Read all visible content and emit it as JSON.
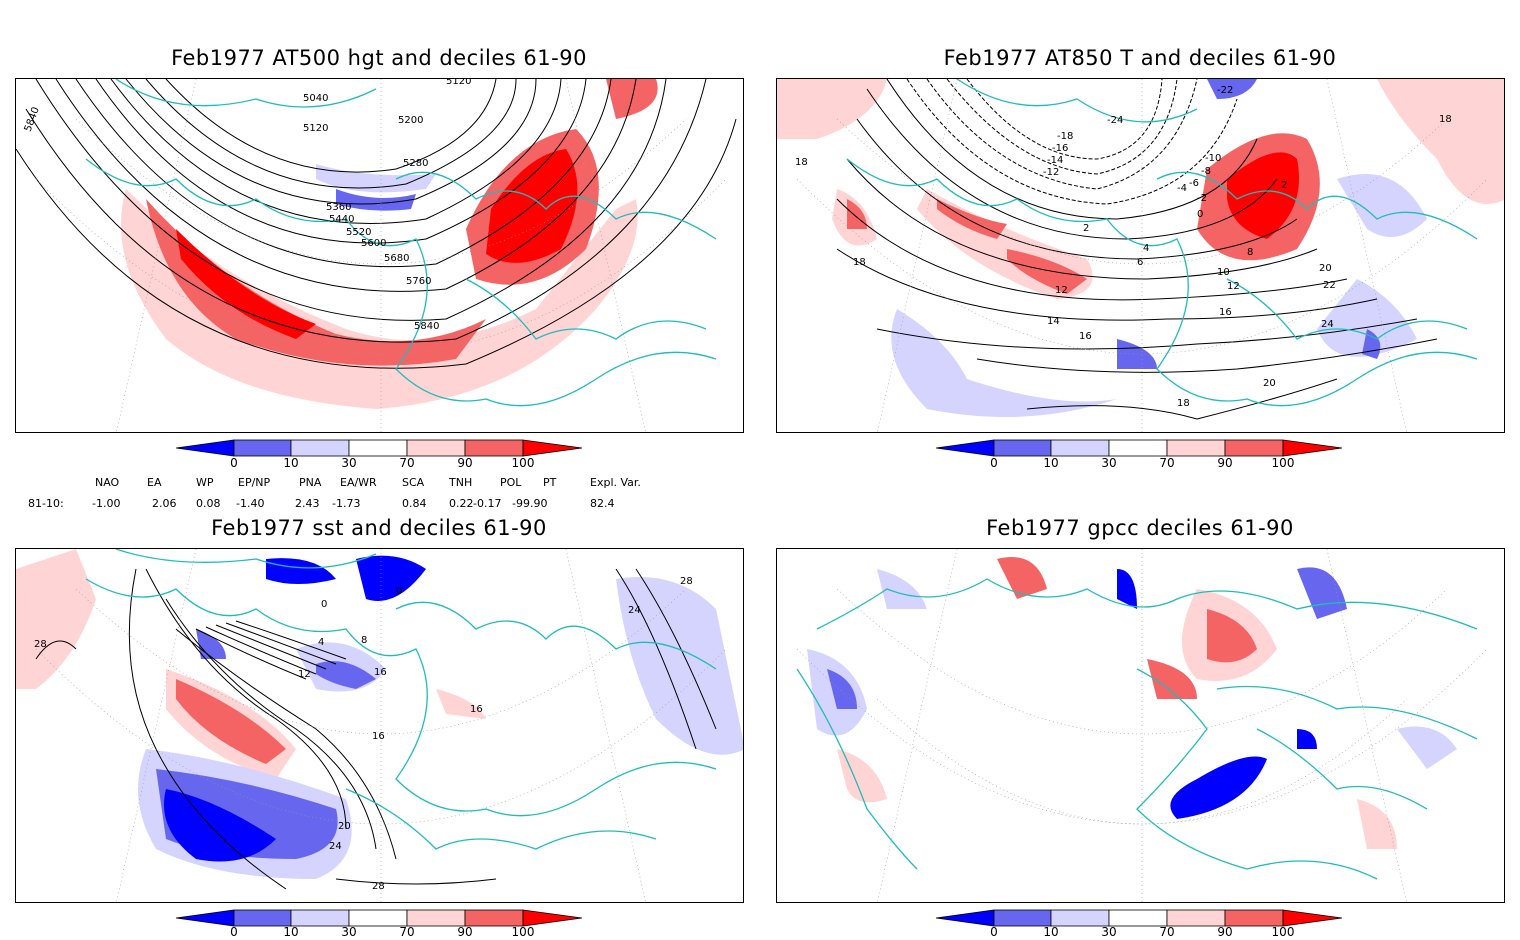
{
  "panels": [
    {
      "id": "p1",
      "title": "Feb1977 AT500 hgt and deciles 61-90",
      "contour_labels": [
        "5040",
        "5120",
        "5200",
        "5280",
        "5360",
        "5440",
        "5520",
        "5600",
        "5680",
        "5760",
        "5840",
        "5840",
        "5120"
      ]
    },
    {
      "id": "p2",
      "title": "Feb1977 AT850 T and deciles 61-90",
      "contour_labels": [
        "-24",
        "-22",
        "-18",
        "-16",
        "-14",
        "-12",
        "-10",
        "-8",
        "-6",
        "-4",
        "-2",
        "0",
        "2",
        "4",
        "6",
        "8",
        "10",
        "12",
        "12",
        "14",
        "16",
        "16",
        "18",
        "18",
        "18",
        "20",
        "20",
        "22",
        "24",
        "2",
        "18"
      ]
    },
    {
      "id": "p3",
      "title": "Feb1977 sst and deciles 61-90",
      "contour_labels": [
        "28",
        "28",
        "0",
        "0",
        "4",
        "8",
        "12",
        "16",
        "16",
        "20",
        "24",
        "24",
        "28",
        "16"
      ]
    },
    {
      "id": "p4",
      "title": "Feb1977 gpcc deciles 61-90",
      "contour_labels": []
    }
  ],
  "colorbar": {
    "labels": [
      "0",
      "10",
      "30",
      "70",
      "90",
      "100"
    ],
    "colors": {
      "strong_blue": "#0000ff",
      "mid_blue": "#6666ee",
      "light_blue": "#d4d4ff",
      "white": "#ffffff",
      "light_red": "#ffd4d4",
      "mid_red": "#f56464",
      "strong_red": "#ff0000"
    }
  },
  "indices": {
    "headers": [
      "NAO",
      "EA",
      "WP",
      "EP/NP",
      "PNA",
      "EA/WR",
      "SCA",
      "TNH",
      "POL",
      "PT",
      "Expl. Var."
    ],
    "row_label": "81-10:",
    "values": [
      "-1.00",
      "2.06",
      "0.08",
      "-1.40",
      "2.43",
      "-1.73",
      "0.84",
      "0.22",
      "-0.17",
      "-99.90",
      "82.4"
    ]
  },
  "colors": {
    "coast": "#22bbbb",
    "contour": "#000000",
    "grid": "#999999"
  }
}
